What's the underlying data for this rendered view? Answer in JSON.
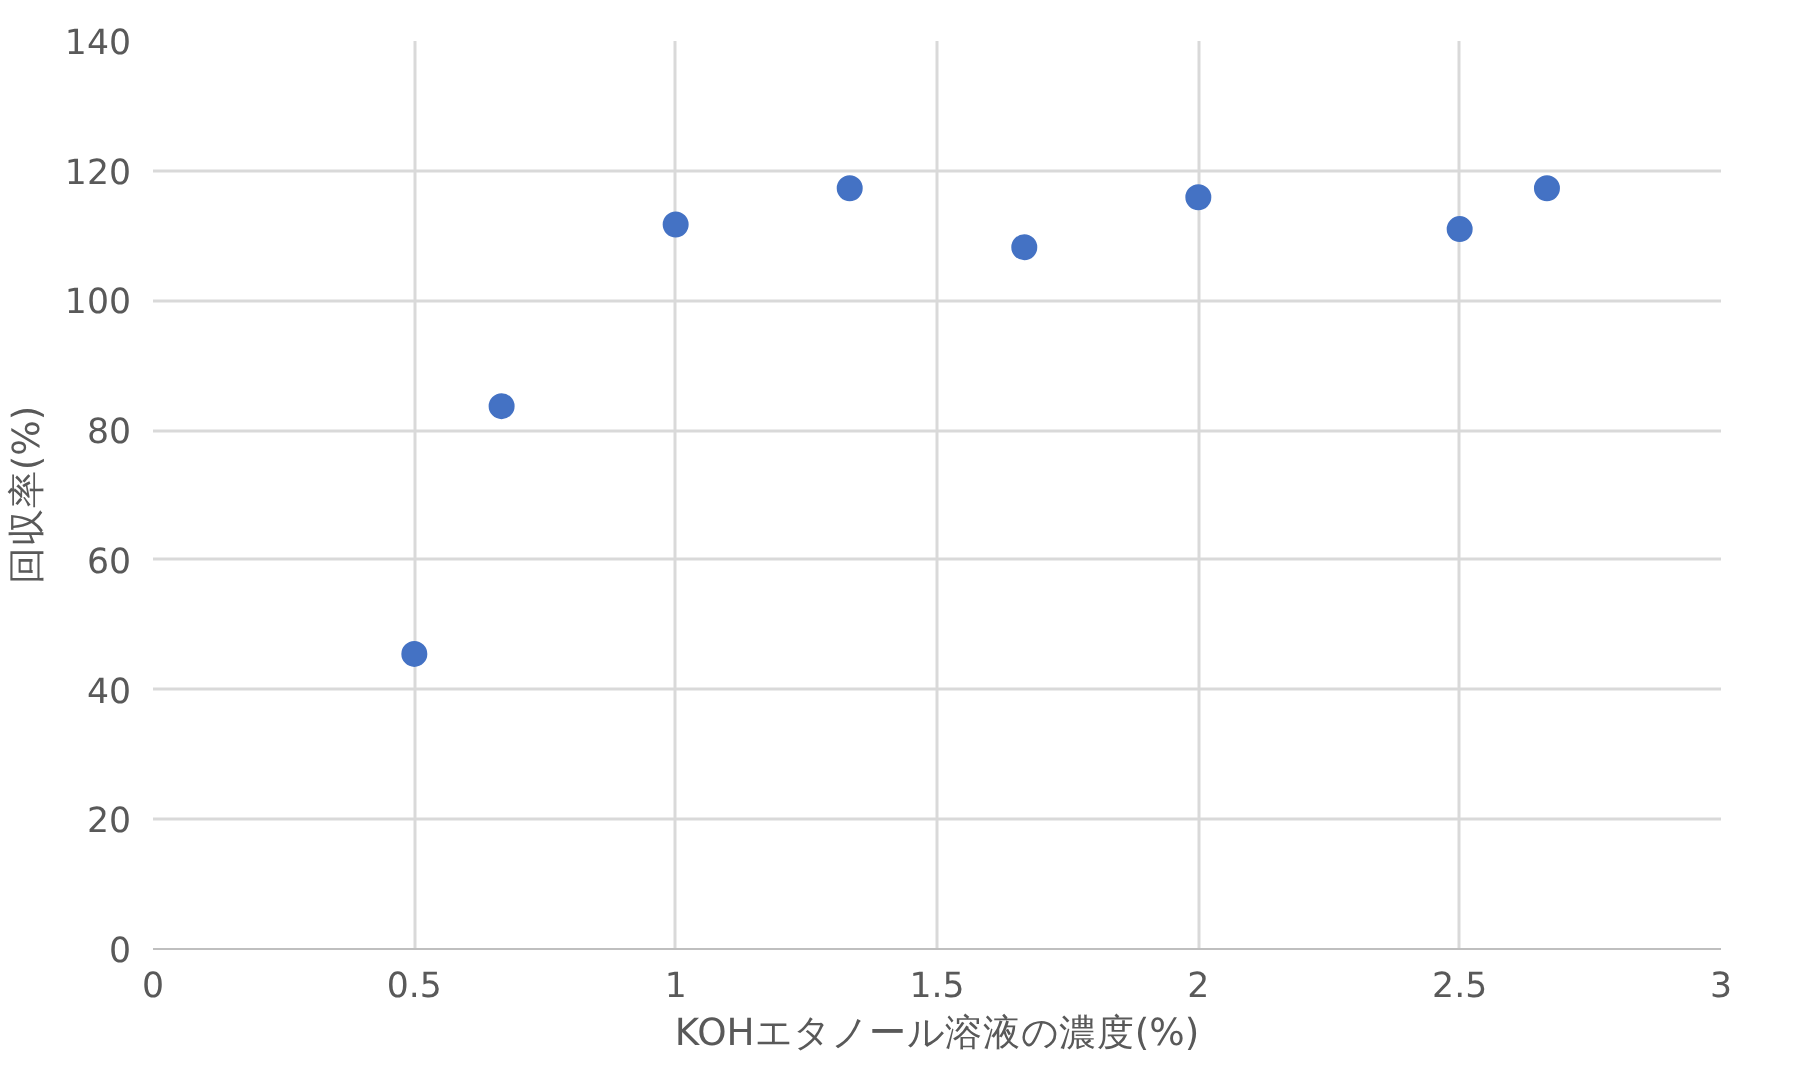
{
  "chart_data": {
    "type": "scatter",
    "xlabel": "KOHエタノール溶液の濃度(%)",
    "ylabel": "回収率(%)",
    "x": [
      0.5,
      0.667,
      1.0,
      1.333,
      1.667,
      2.0,
      2.5,
      2.667
    ],
    "series": [
      {
        "color": "#4472c4",
        "values": [
          45.5,
          83.7,
          111.7,
          117.3,
          108.2,
          115.9,
          111.0,
          117.3
        ]
      }
    ],
    "xlim": [
      0,
      3
    ],
    "xticks": [
      0,
      0.5,
      1,
      1.5,
      2,
      2.5,
      3
    ],
    "ylim": [
      0,
      140
    ],
    "yticks": [
      0,
      20,
      40,
      60,
      80,
      100,
      120,
      140
    ],
    "grid": true,
    "marker": "circle"
  }
}
